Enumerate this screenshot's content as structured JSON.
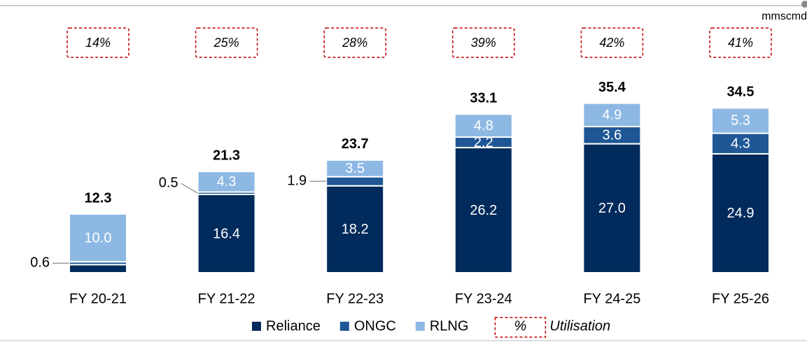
{
  "chart_data": {
    "type": "stacked_bar",
    "unit": "mmscmd",
    "categories": [
      "FY 20-21",
      "FY 21-22",
      "FY 22-23",
      "FY 23-24",
      "FY 24-25",
      "FY 25-26"
    ],
    "series": [
      {
        "name": "Reliance",
        "color": "#002b5c",
        "values": [
          1.7,
          16.4,
          18.2,
          26.2,
          27.0,
          24.9
        ],
        "value_labels": [
          null,
          "16.4",
          "18.2",
          "26.2",
          "27.0",
          "24.9"
        ]
      },
      {
        "name": "ONGC",
        "color": "#1f5796",
        "values": [
          0.6,
          0.5,
          1.9,
          2.2,
          3.6,
          4.3
        ],
        "value_labels": [
          "0.6",
          "0.5",
          "1.9",
          "2.2",
          "3.6",
          "4.3"
        ]
      },
      {
        "name": "RLNG",
        "color": "#8db8e3",
        "values": [
          10.0,
          4.3,
          3.5,
          4.8,
          4.9,
          5.3
        ],
        "value_labels": [
          "10.0",
          "4.3",
          "3.5",
          "4.8",
          "4.9",
          "5.3"
        ]
      }
    ],
    "totals": [
      12.3,
      21.3,
      23.7,
      33.1,
      35.4,
      34.5
    ],
    "utilisation": {
      "name": "Utilisation",
      "symbol": "%",
      "values": [
        14,
        25,
        28,
        39,
        42,
        41
      ],
      "value_labels": [
        "14%",
        "25%",
        "28%",
        "39%",
        "42%",
        "41%"
      ]
    }
  }
}
